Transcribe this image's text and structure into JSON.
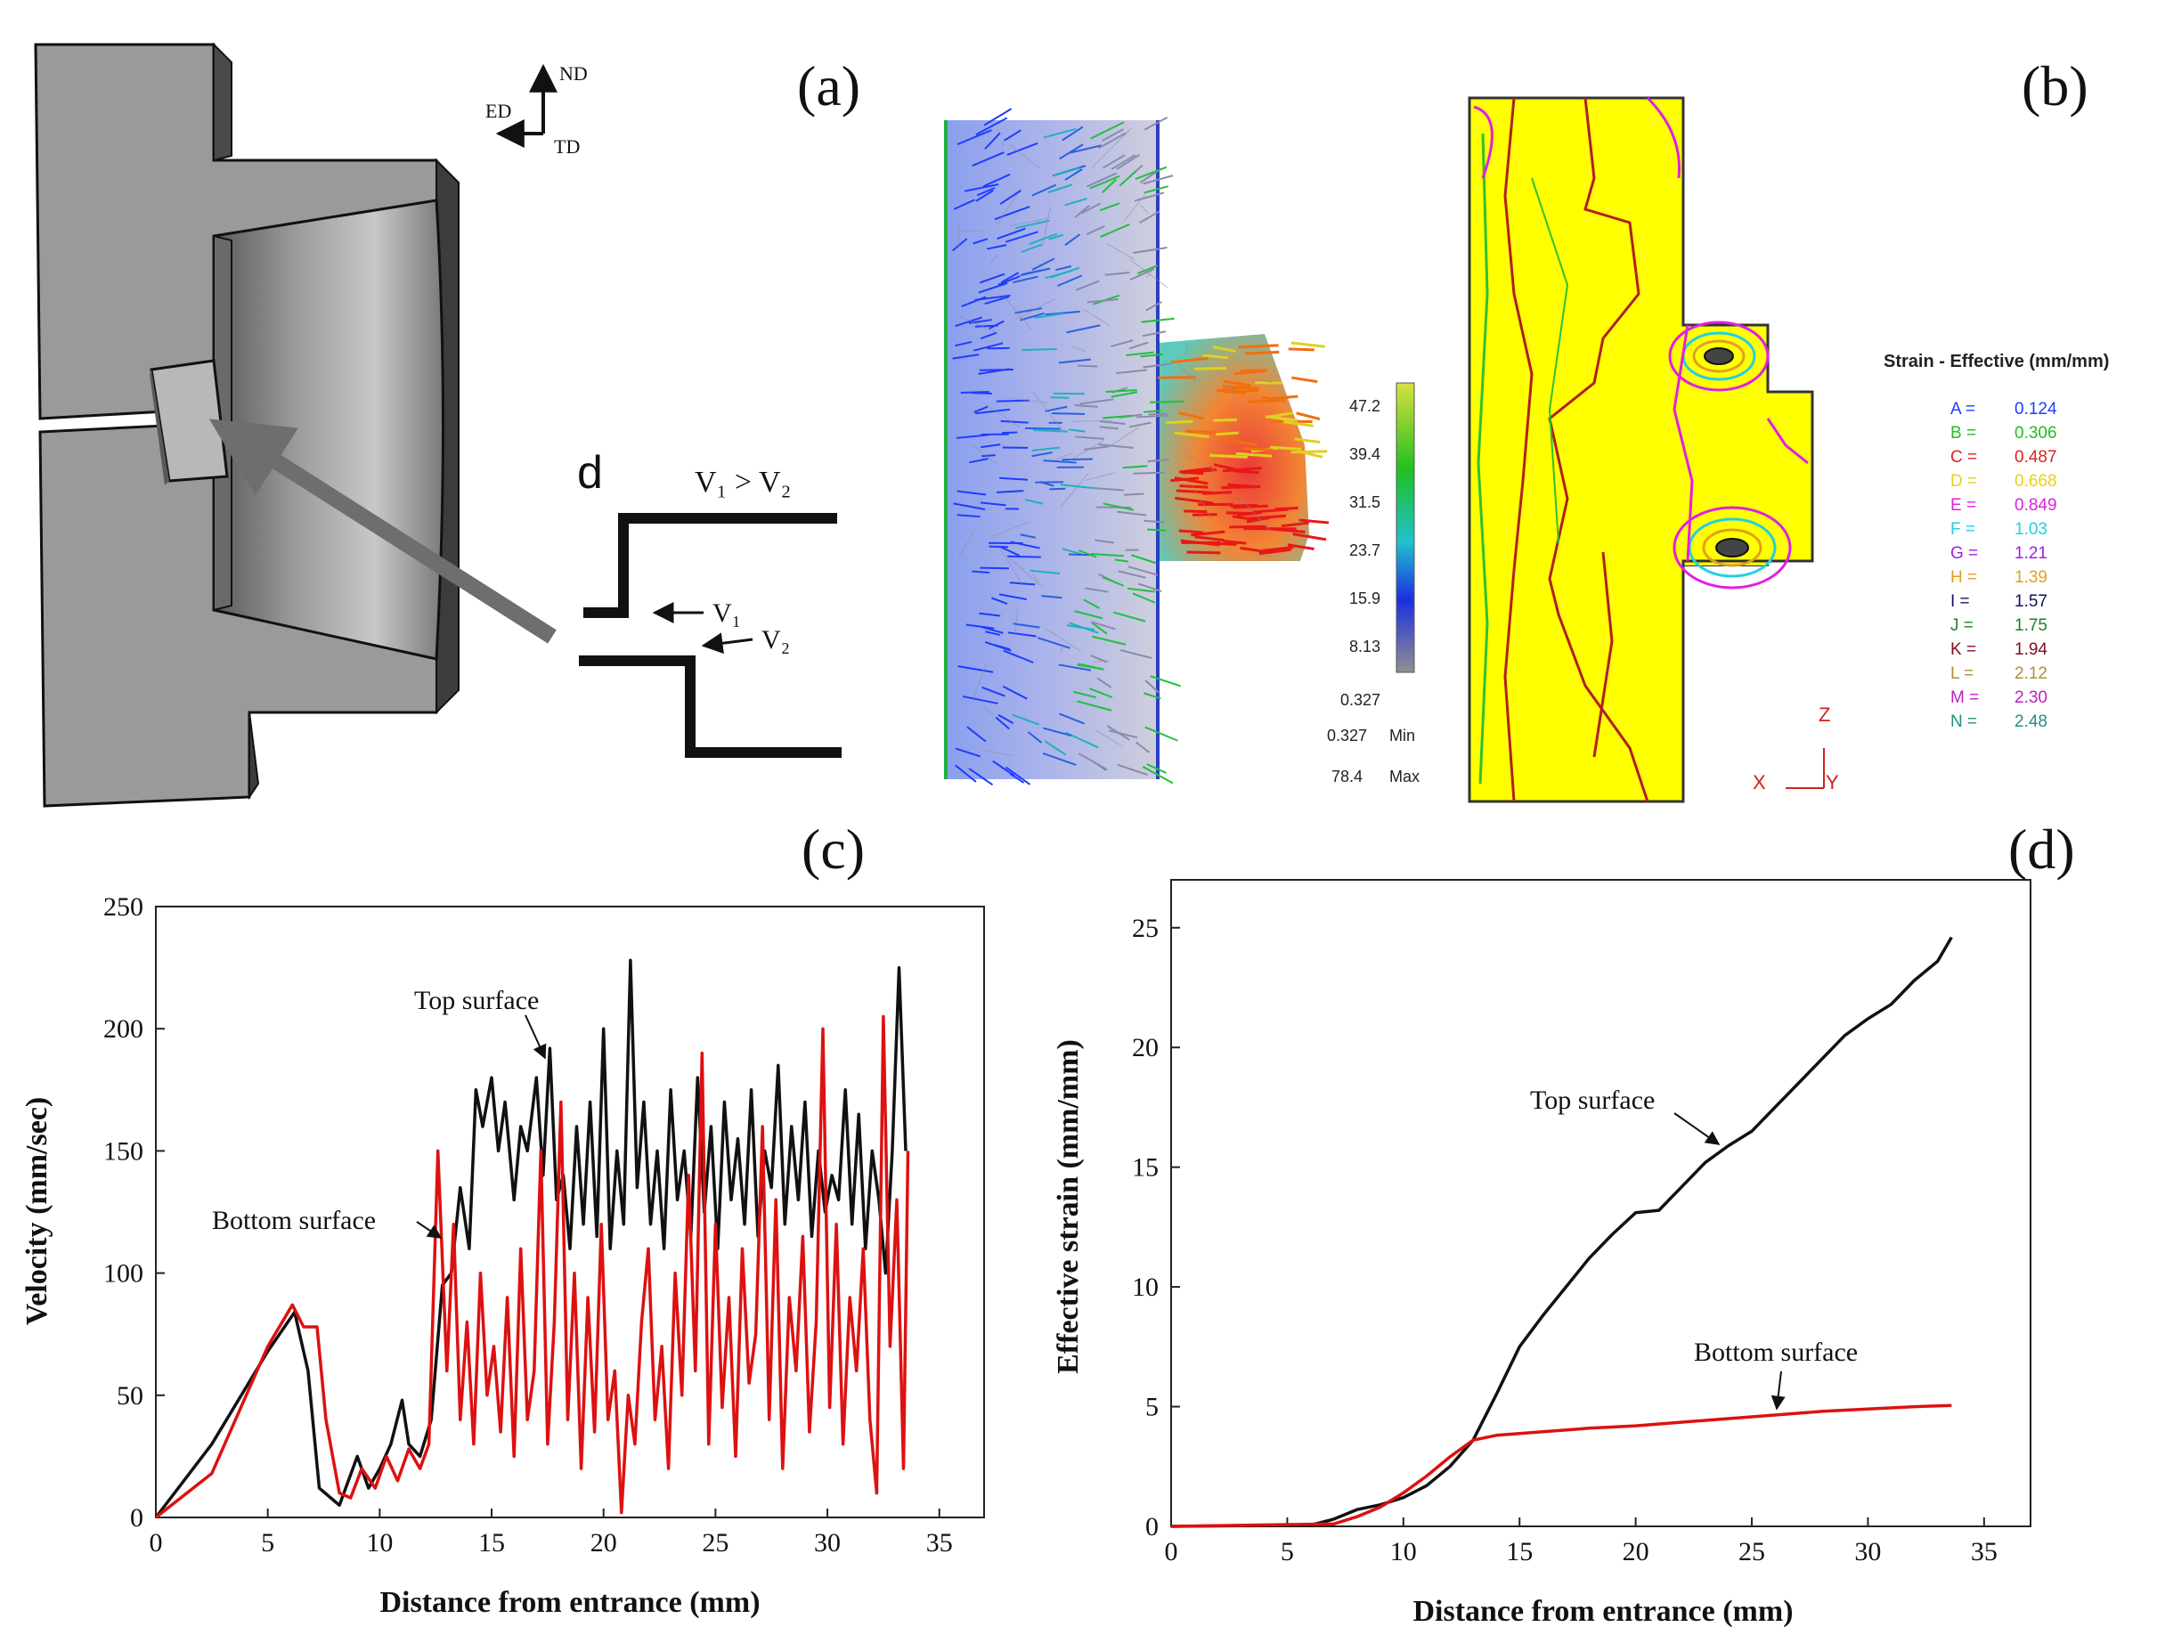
{
  "panel_a": {
    "label": "(a)",
    "axis_nd": "ND",
    "axis_ed": "ED",
    "axis_td": "TD",
    "inset_letter": "d",
    "v_relation": "V₁ > V₂",
    "v1": "V₁",
    "v2": "V₂"
  },
  "panel_b": {
    "label": "(b)",
    "velocity_scale": [
      "47.2",
      "39.4",
      "31.5",
      "23.7",
      "15.9",
      "8.13",
      "0.327"
    ],
    "min_value": "0.327",
    "min_label": "Min",
    "max_value": "78.4",
    "max_label": "Max",
    "legend_title": "Strain - Effective (mm/mm)",
    "legend_items": [
      {
        "key": "A =",
        "value": "0.124",
        "color": "#1e3cff"
      },
      {
        "key": "B =",
        "value": "0.306",
        "color": "#22bb22"
      },
      {
        "key": "C =",
        "value": "0.487",
        "color": "#dd2222"
      },
      {
        "key": "D =",
        "value": "0.668",
        "color": "#e6d21a"
      },
      {
        "key": "E =",
        "value": "0.849",
        "color": "#e020e0"
      },
      {
        "key": "F =",
        "value": "1.03",
        "color": "#22d0e0"
      },
      {
        "key": "G =",
        "value": "1.21",
        "color": "#a020e0"
      },
      {
        "key": "H =",
        "value": "1.39",
        "color": "#e0a020"
      },
      {
        "key": "I =",
        "value": "1.57",
        "color": "#101060"
      },
      {
        "key": "J =",
        "value": "1.75",
        "color": "#208020"
      },
      {
        "key": "K =",
        "value": "1.94",
        "color": "#801020"
      },
      {
        "key": "L =",
        "value": "2.12",
        "color": "#b09030"
      },
      {
        "key": "M =",
        "value": "2.30",
        "color": "#c020c0"
      },
      {
        "key": "N =",
        "value": "2.48",
        "color": "#209080"
      }
    ],
    "axes_z": "Z",
    "axes_x": "X",
    "axes_y": "Y"
  },
  "chart_data": [
    {
      "type": "line",
      "panel": "(c)",
      "title": "",
      "xlabel": "Distance from entrance (mm)",
      "ylabel": "Velocity (mm/sec)",
      "xlim": [
        0,
        37
      ],
      "ylim": [
        0,
        250
      ],
      "xticks": [
        0,
        5,
        10,
        15,
        20,
        25,
        30,
        35
      ],
      "yticks": [
        0,
        50,
        100,
        150,
        200,
        250
      ],
      "annotations": [
        "Top surface",
        "Bottom surface"
      ],
      "series": [
        {
          "name": "Top surface",
          "color": "#111111",
          "x": [
            0,
            2.5,
            5,
            6.2,
            6.8,
            7.3,
            8.2,
            9,
            9.5,
            10,
            10.5,
            11,
            11.3,
            11.8,
            12.3,
            12.8,
            13.2,
            13.6,
            14,
            14.3,
            14.6,
            15,
            15.3,
            15.6,
            16,
            16.3,
            16.6,
            17,
            17.3,
            17.6,
            17.9,
            18.2,
            18.5,
            18.8,
            19.1,
            19.4,
            19.7,
            20,
            20.3,
            20.6,
            20.9,
            21.2,
            21.5,
            21.8,
            22.1,
            22.4,
            22.7,
            23,
            23.3,
            23.6,
            23.9,
            24.2,
            24.5,
            24.8,
            25.1,
            25.4,
            25.7,
            26,
            26.3,
            26.6,
            26.9,
            27.2,
            27.5,
            27.8,
            28.1,
            28.4,
            28.7,
            29,
            29.3,
            29.6,
            29.9,
            30.2,
            30.5,
            30.8,
            31.1,
            31.4,
            31.7,
            32,
            32.3,
            32.6,
            32.9,
            33.2,
            33.5
          ],
          "values": [
            0,
            30,
            68,
            84,
            60,
            12,
            5,
            25,
            12,
            20,
            30,
            48,
            30,
            25,
            40,
            95,
            100,
            135,
            110,
            175,
            160,
            180,
            150,
            170,
            130,
            160,
            150,
            180,
            140,
            192,
            130,
            140,
            110,
            160,
            120,
            170,
            115,
            200,
            110,
            150,
            120,
            228,
            135,
            170,
            120,
            150,
            110,
            175,
            130,
            150,
            115,
            180,
            125,
            160,
            110,
            170,
            130,
            155,
            120,
            175,
            115,
            150,
            135,
            185,
            120,
            160,
            130,
            170,
            115,
            150,
            125,
            140,
            130,
            175,
            120,
            165,
            110,
            150,
            130,
            100,
            150,
            225,
            150
          ],
          "label_x": 20.5,
          "label_y": 210
        },
        {
          "name": "Bottom surface",
          "color": "#dd1111",
          "x": [
            0,
            2.5,
            5,
            6.1,
            6.6,
            7.2,
            7.6,
            8.2,
            8.7,
            9.2,
            9.8,
            10.3,
            10.8,
            11.3,
            11.8,
            12.2,
            12.6,
            13,
            13.3,
            13.6,
            13.9,
            14.2,
            14.5,
            14.8,
            15.1,
            15.4,
            15.7,
            16,
            16.3,
            16.6,
            16.9,
            17.2,
            17.5,
            17.8,
            18.1,
            18.4,
            18.7,
            19,
            19.3,
            19.6,
            19.9,
            20.2,
            20.5,
            20.8,
            21.1,
            21.4,
            21.7,
            22,
            22.3,
            22.6,
            22.9,
            23.2,
            23.5,
            23.8,
            24.1,
            24.4,
            24.7,
            25,
            25.3,
            25.6,
            25.9,
            26.2,
            26.5,
            26.8,
            27.1,
            27.4,
            27.7,
            28,
            28.3,
            28.6,
            28.9,
            29.2,
            29.5,
            29.8,
            30.1,
            30.4,
            30.7,
            31,
            31.3,
            31.6,
            31.9,
            32.2,
            32.5,
            32.8,
            33.1,
            33.4,
            33.6
          ],
          "values": [
            0,
            18,
            70,
            87,
            78,
            78,
            40,
            10,
            8,
            20,
            12,
            25,
            15,
            28,
            20,
            30,
            150,
            60,
            120,
            40,
            80,
            30,
            100,
            50,
            70,
            35,
            90,
            25,
            110,
            40,
            60,
            150,
            30,
            80,
            170,
            40,
            100,
            20,
            90,
            35,
            120,
            40,
            60,
            2,
            50,
            30,
            80,
            110,
            40,
            70,
            20,
            100,
            50,
            140,
            60,
            190,
            30,
            120,
            45,
            90,
            25,
            110,
            55,
            75,
            160,
            40,
            130,
            20,
            90,
            60,
            115,
            35,
            80,
            200,
            45,
            120,
            30,
            90,
            60,
            110,
            40,
            10,
            205,
            70,
            130,
            20,
            150
          ],
          "label_x": 3.5,
          "label_y": 120
        }
      ]
    },
    {
      "type": "line",
      "panel": "(d)",
      "title": "",
      "xlabel": "Distance from entrance (mm)",
      "ylabel": "Effective strain (mm/mm)",
      "xlim": [
        0,
        37
      ],
      "ylim": [
        0,
        27
      ],
      "xticks": [
        0,
        5,
        10,
        15,
        20,
        25,
        30,
        35
      ],
      "yticks": [
        0,
        5,
        10,
        15,
        20,
        25
      ],
      "annotations": [
        "Top surface",
        "Bottom surface"
      ],
      "series": [
        {
          "name": "Top surface",
          "color": "#111111",
          "x": [
            0,
            6,
            7,
            8,
            9,
            10,
            11,
            12,
            13,
            14,
            15,
            16,
            17,
            18,
            19,
            20,
            21,
            22,
            23,
            24,
            25,
            26,
            27,
            28,
            29,
            30,
            31,
            32,
            33,
            33.6
          ],
          "values": [
            0,
            0.05,
            0.3,
            0.7,
            0.9,
            1.2,
            1.7,
            2.5,
            3.6,
            5.5,
            7.5,
            8.8,
            10,
            11.2,
            12.2,
            13.1,
            13.2,
            14.2,
            15.2,
            15.9,
            16.5,
            17.5,
            18.5,
            19.5,
            20.5,
            21.2,
            21.8,
            22.8,
            23.6,
            24.6
          ],
          "label_x": 15.5,
          "label_y": 17.5
        },
        {
          "name": "Bottom surface",
          "color": "#dd1111",
          "x": [
            0,
            7,
            8,
            9,
            10,
            11,
            12,
            13,
            14,
            16,
            18,
            20,
            22,
            24,
            26,
            28,
            30,
            32,
            33.6
          ],
          "values": [
            0,
            0.1,
            0.4,
            0.8,
            1.4,
            2.1,
            2.9,
            3.6,
            3.8,
            3.95,
            4.1,
            4.2,
            4.35,
            4.5,
            4.65,
            4.8,
            4.9,
            5.0,
            5.05
          ],
          "label_x": 23,
          "label_y": 6.8
        }
      ]
    }
  ]
}
